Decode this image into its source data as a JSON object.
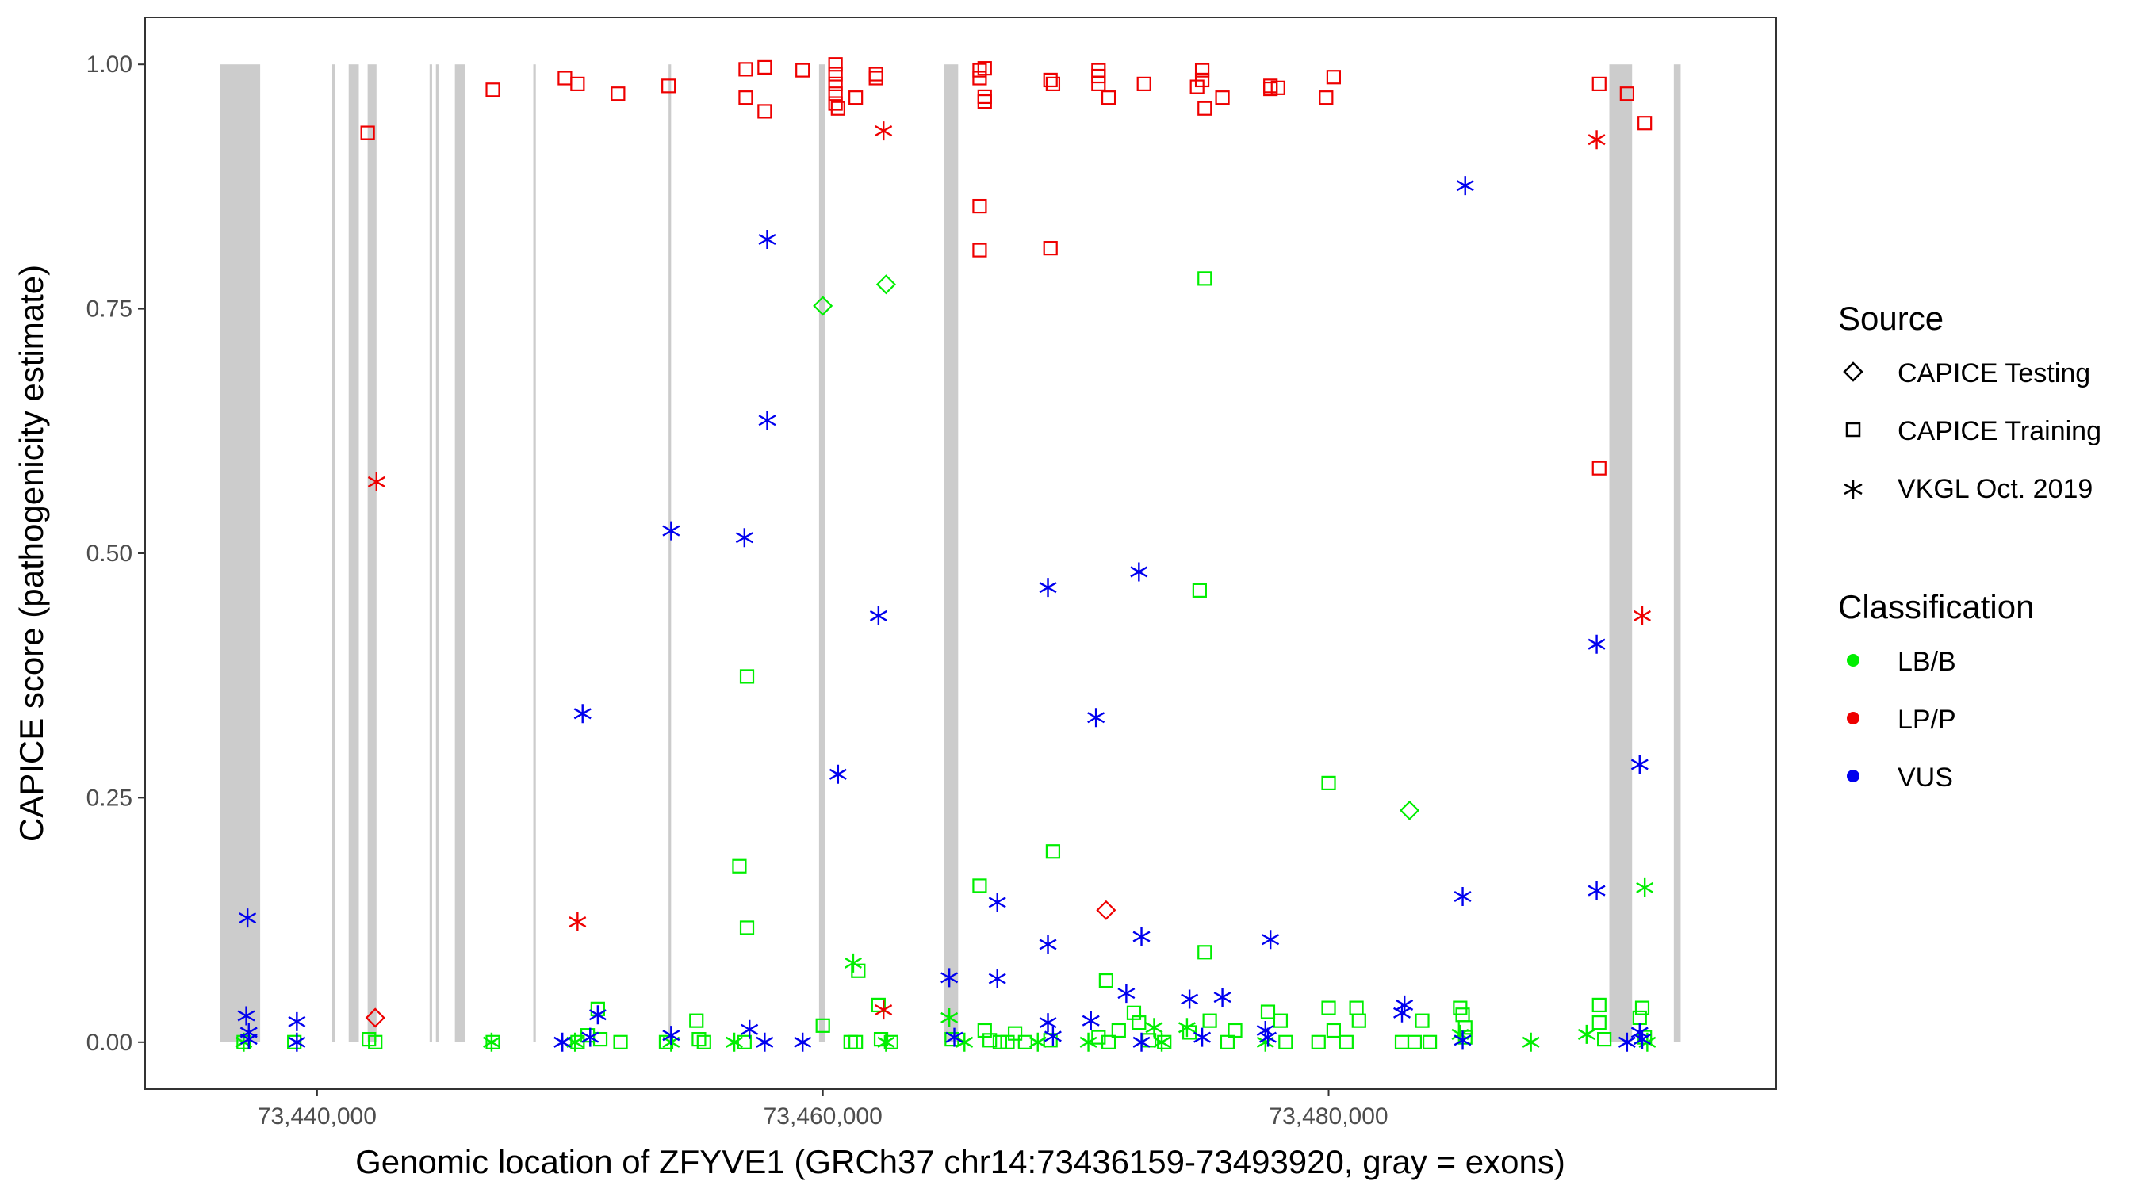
{
  "chart_data": {
    "type": "scatter",
    "title": "",
    "xlabel": "Genomic location of ZFYVE1 (GRCh37 chr14:73436159-73493920, gray = exons)",
    "ylabel": "CAPICE score (pathogenicity estimate)",
    "xlim": [
      73433200,
      73497700
    ],
    "ylim": [
      -0.048,
      1.048
    ],
    "x_ticks": [
      73440000,
      73460000,
      73480000
    ],
    "x_tick_labels": [
      "73,440,000",
      "73,460,000",
      "73,480,000"
    ],
    "y_ticks": [
      0,
      0.25,
      0.5,
      0.75,
      1
    ],
    "y_tick_labels": [
      "0.00",
      "0.25",
      "0.50",
      "0.75",
      "1.00"
    ],
    "grid": false,
    "exons": [
      [
        73436159,
        73437750
      ],
      [
        73440600,
        73440720
      ],
      [
        73441250,
        73441650
      ],
      [
        73442000,
        73442350
      ],
      [
        73444450,
        73444550
      ],
      [
        73444700,
        73444800
      ],
      [
        73445450,
        73445850
      ],
      [
        73448550,
        73448650
      ],
      [
        73453900,
        73454000
      ],
      [
        73459850,
        73460100
      ],
      [
        73464800,
        73465350
      ],
      [
        73491100,
        73492000
      ],
      [
        73493650,
        73493920
      ]
    ],
    "colors": {
      "LB/B": "#00ee00",
      "LP/P": "#ee0000",
      "VUS": "#0000ee",
      "exon": "#cccccc"
    },
    "legend": {
      "placement": "right",
      "source_title": "Source",
      "source_items": [
        {
          "label": "CAPICE Testing",
          "shape": "diamond"
        },
        {
          "label": "CAPICE Training",
          "shape": "square"
        },
        {
          "label": "VKGL Oct. 2019",
          "shape": "asterisk"
        }
      ],
      "class_title": "Classification",
      "class_items": [
        {
          "label": "LB/B",
          "cls": "LB/B"
        },
        {
          "label": "LP/P",
          "cls": "LP/P"
        },
        {
          "label": "VUS",
          "cls": "VUS"
        }
      ]
    },
    "series": [
      {
        "cls": "LP/P",
        "shape": "square",
        "points": [
          [
            73442000,
            0.93
          ],
          [
            73446950,
            0.974
          ],
          [
            73449800,
            0.986
          ],
          [
            73450300,
            0.98
          ],
          [
            73451900,
            0.97
          ],
          [
            73453900,
            0.978
          ],
          [
            73456950,
            0.995
          ],
          [
            73456950,
            0.966
          ],
          [
            73457700,
            0.997
          ],
          [
            73457700,
            0.952
          ],
          [
            73459200,
            0.994
          ],
          [
            73460500,
            1.0
          ],
          [
            73460500,
            0.99
          ],
          [
            73460500,
            0.98
          ],
          [
            73460500,
            0.97
          ],
          [
            73460500,
            0.96
          ],
          [
            73460600,
            0.955
          ],
          [
            73461300,
            0.966
          ],
          [
            73462100,
            0.99
          ],
          [
            73462100,
            0.986
          ],
          [
            73466200,
            0.994
          ],
          [
            73466200,
            0.986
          ],
          [
            73466400,
            0.996
          ],
          [
            73466400,
            0.967
          ],
          [
            73466400,
            0.962
          ],
          [
            73466200,
            0.855
          ],
          [
            73466200,
            0.81
          ],
          [
            73469000,
            0.984
          ],
          [
            73469100,
            0.98
          ],
          [
            73469000,
            0.812
          ],
          [
            73470900,
            0.994
          ],
          [
            73470900,
            0.988
          ],
          [
            73470900,
            0.98
          ],
          [
            73471300,
            0.966
          ],
          [
            73472700,
            0.98
          ],
          [
            73474800,
            0.977
          ],
          [
            73475000,
            0.994
          ],
          [
            73475000,
            0.984
          ],
          [
            73475100,
            0.955
          ],
          [
            73475800,
            0.966
          ],
          [
            73477700,
            0.978
          ],
          [
            73477700,
            0.975
          ],
          [
            73478000,
            0.976
          ],
          [
            73479900,
            0.966
          ],
          [
            73480200,
            0.987
          ],
          [
            73490700,
            0.98
          ],
          [
            73491800,
            0.97
          ],
          [
            73492500,
            0.94
          ],
          [
            73490700,
            0.587
          ]
        ]
      },
      {
        "cls": "LP/P",
        "shape": "asterisk",
        "points": [
          [
            73442350,
            0.573
          ],
          [
            73450300,
            0.123
          ],
          [
            73462400,
            0.932
          ],
          [
            73462400,
            0.033
          ],
          [
            73490600,
            0.923
          ],
          [
            73492400,
            0.436
          ]
        ]
      },
      {
        "cls": "LP/P",
        "shape": "diamond",
        "points": [
          [
            73442300,
            0.025
          ],
          [
            73471200,
            0.135
          ]
        ]
      },
      {
        "cls": "VUS",
        "shape": "asterisk",
        "points": [
          [
            73437250,
            0.127
          ],
          [
            73437200,
            0.027
          ],
          [
            73437300,
            0.01
          ],
          [
            73437300,
            0.003
          ],
          [
            73439200,
            0.021
          ],
          [
            73439200,
            0.0
          ],
          [
            73449700,
            0.0
          ],
          [
            73450500,
            0.336
          ],
          [
            73451100,
            0.028
          ],
          [
            73450800,
            0.005
          ],
          [
            73454000,
            0.523
          ],
          [
            73454000,
            0.007
          ],
          [
            73456900,
            0.516
          ],
          [
            73457100,
            0.013
          ],
          [
            73457800,
            0.821
          ],
          [
            73457800,
            0.636
          ],
          [
            73457700,
            0.0
          ],
          [
            73459200,
            0.0
          ],
          [
            73460600,
            0.274
          ],
          [
            73462200,
            0.436
          ],
          [
            73465000,
            0.066
          ],
          [
            73465200,
            0.005
          ],
          [
            73466900,
            0.143
          ],
          [
            73466900,
            0.065
          ],
          [
            73468900,
            0.465
          ],
          [
            73468900,
            0.1
          ],
          [
            73468900,
            0.02
          ],
          [
            73469100,
            0.006
          ],
          [
            73470800,
            0.332
          ],
          [
            73470600,
            0.022
          ],
          [
            73472500,
            0.481
          ],
          [
            73472000,
            0.05
          ],
          [
            73472600,
            0.108
          ],
          [
            73472600,
            0.0
          ],
          [
            73474500,
            0.044
          ],
          [
            73475000,
            0.005
          ],
          [
            73475800,
            0.046
          ],
          [
            73477700,
            0.105
          ],
          [
            73477500,
            0.012
          ],
          [
            73477600,
            0.005
          ],
          [
            73482900,
            0.03
          ],
          [
            73483000,
            0.038
          ],
          [
            73485400,
            0.876
          ],
          [
            73485300,
            0.149
          ],
          [
            73485300,
            0.002
          ],
          [
            73490600,
            0.155
          ],
          [
            73490600,
            0.407
          ],
          [
            73492300,
            0.284
          ],
          [
            73491800,
            0.0
          ],
          [
            73492300,
            0.01
          ],
          [
            73492400,
            0.003
          ]
        ]
      },
      {
        "cls": "LB/B",
        "shape": "square",
        "points": [
          [
            73437100,
            0.0
          ],
          [
            73439100,
            0.0
          ],
          [
            73442050,
            0.003
          ],
          [
            73442300,
            0.0
          ],
          [
            73446950,
            0.0
          ],
          [
            73450300,
            0.0
          ],
          [
            73450700,
            0.007
          ],
          [
            73451100,
            0.034
          ],
          [
            73451200,
            0.003
          ],
          [
            73452000,
            0.0
          ],
          [
            73453800,
            0.0
          ],
          [
            73455000,
            0.022
          ],
          [
            73455100,
            0.003
          ],
          [
            73455300,
            0.0
          ],
          [
            73456700,
            0.18
          ],
          [
            73457000,
            0.374
          ],
          [
            73457000,
            0.117
          ],
          [
            73456900,
            0.0
          ],
          [
            73460000,
            0.017
          ],
          [
            73461100,
            0.0
          ],
          [
            73461300,
            0.0
          ],
          [
            73461400,
            0.073
          ],
          [
            73462200,
            0.038
          ],
          [
            73462300,
            0.003
          ],
          [
            73462700,
            0.0
          ],
          [
            73465100,
            0.003
          ],
          [
            73466200,
            0.16
          ],
          [
            73466400,
            0.012
          ],
          [
            73466600,
            0.002
          ],
          [
            73467000,
            0.0
          ],
          [
            73467300,
            0.0
          ],
          [
            73467600,
            0.009
          ],
          [
            73468000,
            0.0
          ],
          [
            73469100,
            0.195
          ],
          [
            73469000,
            0.002
          ],
          [
            73471200,
            0.063
          ],
          [
            73470900,
            0.005
          ],
          [
            73471300,
            0.0
          ],
          [
            73471700,
            0.012
          ],
          [
            73472300,
            0.03
          ],
          [
            73472500,
            0.02
          ],
          [
            73472900,
            0.002
          ],
          [
            73473500,
            0.0
          ],
          [
            73474500,
            0.01
          ],
          [
            73474900,
            0.462
          ],
          [
            73475100,
            0.781
          ],
          [
            73475100,
            0.092
          ],
          [
            73475300,
            0.022
          ],
          [
            73476000,
            0.0
          ],
          [
            73476300,
            0.012
          ],
          [
            73477600,
            0.031
          ],
          [
            73478100,
            0.022
          ],
          [
            73478300,
            0.0
          ],
          [
            73479600,
            0.0
          ],
          [
            73480000,
            0.265
          ],
          [
            73480000,
            0.035
          ],
          [
            73480200,
            0.012
          ],
          [
            73480700,
            0.0
          ],
          [
            73481100,
            0.035
          ],
          [
            73481200,
            0.022
          ],
          [
            73482900,
            0.0
          ],
          [
            73483400,
            0.0
          ],
          [
            73483700,
            0.022
          ],
          [
            73484000,
            0.0
          ],
          [
            73485200,
            0.035
          ],
          [
            73485300,
            0.028
          ],
          [
            73485400,
            0.015
          ],
          [
            73485400,
            0.005
          ],
          [
            73490700,
            0.038
          ],
          [
            73490700,
            0.02
          ],
          [
            73490900,
            0.003
          ],
          [
            73492400,
            0.035
          ],
          [
            73492300,
            0.025
          ],
          [
            73492500,
            0.005
          ]
        ]
      },
      {
        "cls": "LB/B",
        "shape": "asterisk",
        "points": [
          [
            73437100,
            0.0
          ],
          [
            73446900,
            0.0
          ],
          [
            73450200,
            0.0
          ],
          [
            73454000,
            0.0
          ],
          [
            73456500,
            0.0
          ],
          [
            73461200,
            0.081
          ],
          [
            73462500,
            0.0
          ],
          [
            73465000,
            0.025
          ],
          [
            73465600,
            0.0
          ],
          [
            73468500,
            0.0
          ],
          [
            73470500,
            0.0
          ],
          [
            73473100,
            0.015
          ],
          [
            73473400,
            0.0
          ],
          [
            73474400,
            0.015
          ],
          [
            73477500,
            0.0
          ],
          [
            73488000,
            0.0
          ],
          [
            73490200,
            0.008
          ],
          [
            73492500,
            0.158
          ],
          [
            73492600,
            0.0
          ],
          [
            73485200,
            0.008
          ]
        ]
      },
      {
        "cls": "LB/B",
        "shape": "diamond",
        "points": [
          [
            73460000,
            0.753
          ],
          [
            73462500,
            0.775
          ],
          [
            73483200,
            0.237
          ]
        ]
      }
    ]
  }
}
